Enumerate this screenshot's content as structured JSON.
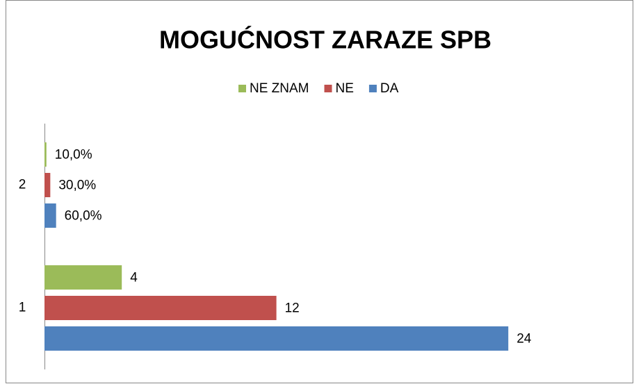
{
  "chart_data": {
    "type": "hbar",
    "title": "MOGUĆNOST ZARAZE SPB",
    "categories": [
      "1",
      "2"
    ],
    "series": [
      {
        "name": "NE ZNAM",
        "color": "#9bbb59",
        "values": [
          4,
          0.1
        ],
        "value_labels": [
          "4",
          "10,0%"
        ]
      },
      {
        "name": "NE",
        "color": "#c0504d",
        "values": [
          12,
          0.3
        ],
        "value_labels": [
          "12",
          "30,0%"
        ]
      },
      {
        "name": "DA",
        "color": "#4f81bd",
        "values": [
          24,
          0.6
        ],
        "value_labels": [
          "24",
          "60,0%"
        ]
      }
    ],
    "xlim": [
      0,
      25
    ],
    "legend": "top"
  }
}
